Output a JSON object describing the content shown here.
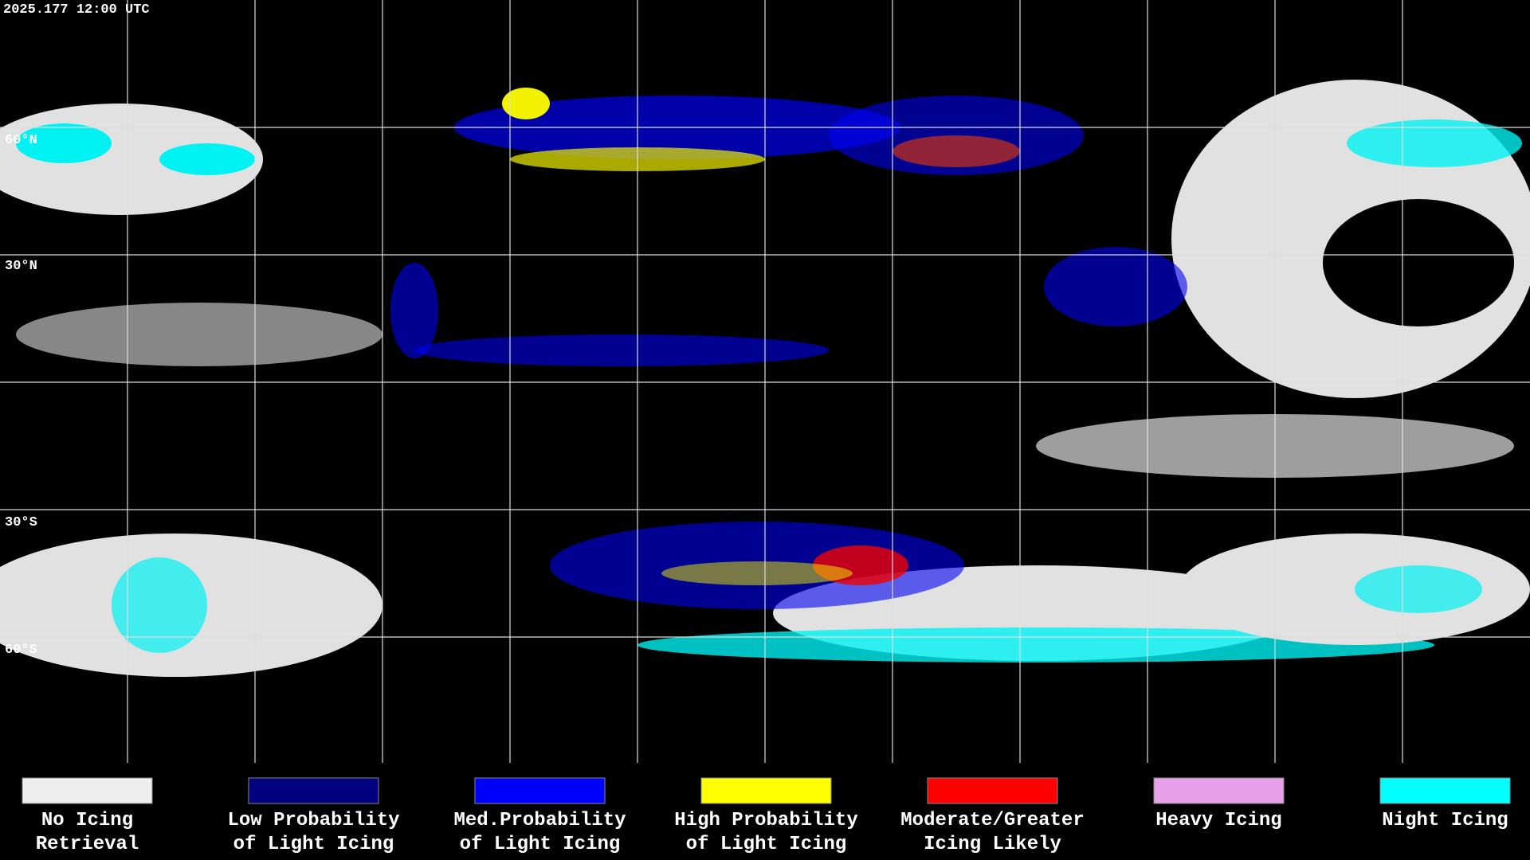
{
  "header": {
    "timestamp": "2025.177 12:00 UTC"
  },
  "latitude_labels": [
    "60°N",
    "30°N",
    "30°S",
    "60°S"
  ],
  "legend": [
    {
      "lines": [
        "No Icing",
        "Retrieval"
      ],
      "color": "#eeeeee"
    },
    {
      "lines": [
        "Low Probability",
        "of Light Icing"
      ],
      "color": "#000080"
    },
    {
      "lines": [
        "Med.Probability",
        "of Light Icing"
      ],
      "color": "#0000ff"
    },
    {
      "lines": [
        "High Probability",
        "of Light Icing"
      ],
      "color": "#ffff00"
    },
    {
      "lines": [
        "Moderate/Greater",
        "Icing Likely"
      ],
      "color": "#ff0000"
    },
    {
      "lines": [
        "Heavy Icing"
      ],
      "color": "#e8a0e8"
    },
    {
      "lines": [
        "Night Icing"
      ],
      "color": "#00ffff"
    }
  ]
}
